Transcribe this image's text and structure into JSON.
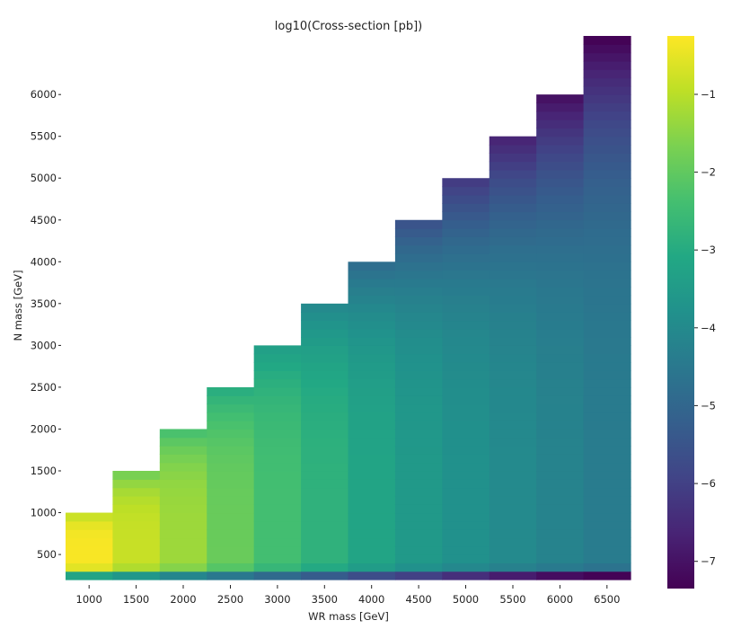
{
  "chart_data": {
    "type": "heatmap",
    "title": "log10(Cross-section [pb])",
    "xlabel": "WR mass [GeV]",
    "ylabel": "N mass [GeV]",
    "x_categories": [
      1000,
      1500,
      2000,
      2500,
      3000,
      3500,
      4000,
      4500,
      5000,
      5500,
      6000,
      6500
    ],
    "y_tick_labels": [
      "500",
      "1000",
      "1500",
      "2000",
      "2500",
      "3000",
      "3500",
      "4000",
      "4500",
      "5000",
      "5500",
      "6000"
    ],
    "y_tick_values": [
      500,
      1000,
      1500,
      2000,
      2500,
      3000,
      3500,
      4000,
      4500,
      5000,
      5500,
      6000
    ],
    "y_range": [
      200,
      6700
    ],
    "y_step": 100,
    "colorscale": "viridis",
    "color_range": [
      -7.35,
      -0.25
    ],
    "colorbar_ticks": [
      -1,
      -2,
      -3,
      -4,
      -5,
      -6,
      -7
    ],
    "colorbar_tick_labels": [
      "−1",
      "−2",
      "−3",
      "−4",
      "−5",
      "−6",
      "−7"
    ],
    "columns": [
      {
        "wr": 1000,
        "n_max": 1000,
        "low": -3.2,
        "base": -0.3,
        "top": -0.8
      },
      {
        "wr": 1500,
        "n_max": 1500,
        "low": -3.6,
        "base": -0.85,
        "top": -1.7
      },
      {
        "wr": 2000,
        "n_max": 2000,
        "low": -4.1,
        "base": -1.3,
        "top": -2.3
      },
      {
        "wr": 2500,
        "n_max": 2500,
        "low": -4.5,
        "base": -1.9,
        "top": -2.9
      },
      {
        "wr": 3000,
        "n_max": 3000,
        "low": -4.9,
        "base": -2.4,
        "top": -3.35
      },
      {
        "wr": 3500,
        "n_max": 3500,
        "low": -5.3,
        "base": -2.8,
        "top": -4.0
      },
      {
        "wr": 4000,
        "n_max": 4000,
        "low": -5.7,
        "base": -3.2,
        "top": -4.8
      },
      {
        "wr": 4500,
        "n_max": 4500,
        "low": -6.0,
        "base": -3.55,
        "top": -5.5
      },
      {
        "wr": 5000,
        "n_max": 5000,
        "low": -6.4,
        "base": -3.8,
        "top": -6.1
      },
      {
        "wr": 5500,
        "n_max": 5500,
        "low": -6.8,
        "base": -4.0,
        "top": -6.6
      },
      {
        "wr": 6000,
        "n_max": 6000,
        "low": -7.1,
        "base": -4.2,
        "top": -7.0
      },
      {
        "wr": 6500,
        "n_max": 6700,
        "low": -7.3,
        "base": -4.4,
        "top": -7.3
      }
    ]
  }
}
